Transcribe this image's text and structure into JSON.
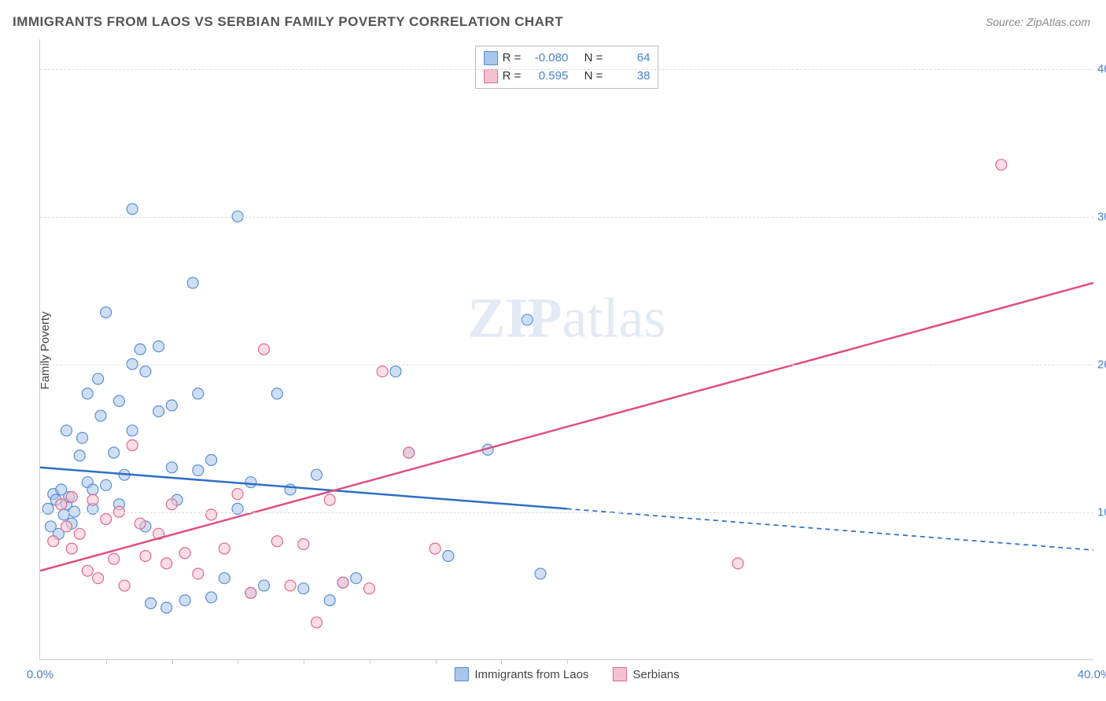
{
  "title": "IMMIGRANTS FROM LAOS VS SERBIAN FAMILY POVERTY CORRELATION CHART",
  "source_prefix": "Source: ",
  "source_name": "ZipAtlas.com",
  "ylabel": "Family Poverty",
  "watermark": {
    "zip": "ZIP",
    "atlas": "atlas"
  },
  "chart": {
    "type": "scatter",
    "xlim": [
      0,
      40
    ],
    "ylim": [
      0,
      42
    ],
    "yticks": [
      {
        "v": 10,
        "label": "10.0%"
      },
      {
        "v": 20,
        "label": "20.0%"
      },
      {
        "v": 30,
        "label": "30.0%"
      },
      {
        "v": 40,
        "label": "40.0%"
      }
    ],
    "xticks_minor": [
      2.5,
      5,
      7.5,
      10,
      12.5,
      15,
      17.5,
      20
    ],
    "xticks_labeled": [
      {
        "v": 0,
        "label": "0.0%"
      },
      {
        "v": 40,
        "label": "40.0%"
      }
    ],
    "background_color": "#ffffff",
    "grid_color": "#dddddd",
    "marker_radius": 7,
    "marker_opacity": 0.55,
    "line_width": 2.5,
    "series": [
      {
        "key": "laos",
        "label": "Immigrants from Laos",
        "color_fill": "#a8c5ea",
        "color_stroke": "#5b8fd6",
        "line_color": "#2f6fc5",
        "R": "-0.080",
        "N": "64",
        "trend": {
          "x1": 0,
          "y1": 13.0,
          "x2_solid": 20,
          "y2_solid": 10.2,
          "x2_dash": 40,
          "y2_dash": 7.4
        },
        "points": [
          [
            0.3,
            10.2
          ],
          [
            0.4,
            9.0
          ],
          [
            0.5,
            11.2
          ],
          [
            0.6,
            10.8
          ],
          [
            0.7,
            8.5
          ],
          [
            0.8,
            11.5
          ],
          [
            0.9,
            9.8
          ],
          [
            1.0,
            10.5
          ],
          [
            1.0,
            15.5
          ],
          [
            1.1,
            11.0
          ],
          [
            1.2,
            9.2
          ],
          [
            1.3,
            10.0
          ],
          [
            1.5,
            13.8
          ],
          [
            1.6,
            15.0
          ],
          [
            1.8,
            12.0
          ],
          [
            1.8,
            18.0
          ],
          [
            2.0,
            11.5
          ],
          [
            2.0,
            10.2
          ],
          [
            2.2,
            19.0
          ],
          [
            2.3,
            16.5
          ],
          [
            2.5,
            23.5
          ],
          [
            2.5,
            11.8
          ],
          [
            2.8,
            14.0
          ],
          [
            3.0,
            10.5
          ],
          [
            3.0,
            17.5
          ],
          [
            3.2,
            12.5
          ],
          [
            3.5,
            30.5
          ],
          [
            3.5,
            20.0
          ],
          [
            3.5,
            15.5
          ],
          [
            3.8,
            21.0
          ],
          [
            4.0,
            19.5
          ],
          [
            4.0,
            9.0
          ],
          [
            4.2,
            3.8
          ],
          [
            4.5,
            21.2
          ],
          [
            4.5,
            16.8
          ],
          [
            4.8,
            3.5
          ],
          [
            5.0,
            13.0
          ],
          [
            5.0,
            17.2
          ],
          [
            5.2,
            10.8
          ],
          [
            5.5,
            4.0
          ],
          [
            5.8,
            25.5
          ],
          [
            6.0,
            12.8
          ],
          [
            6.0,
            18.0
          ],
          [
            6.5,
            13.5
          ],
          [
            6.5,
            4.2
          ],
          [
            7.0,
            5.5
          ],
          [
            7.5,
            30.0
          ],
          [
            7.5,
            10.2
          ],
          [
            8.0,
            4.5
          ],
          [
            8.0,
            12.0
          ],
          [
            8.5,
            5.0
          ],
          [
            9.0,
            18.0
          ],
          [
            9.5,
            11.5
          ],
          [
            10.0,
            4.8
          ],
          [
            10.5,
            12.5
          ],
          [
            11.0,
            4.0
          ],
          [
            11.5,
            5.2
          ],
          [
            12.0,
            5.5
          ],
          [
            13.5,
            19.5
          ],
          [
            14.0,
            14.0
          ],
          [
            15.5,
            7.0
          ],
          [
            17.0,
            14.2
          ],
          [
            18.5,
            23.0
          ],
          [
            19.0,
            5.8
          ]
        ]
      },
      {
        "key": "serbians",
        "label": "Serbians",
        "color_fill": "#f5c1d0",
        "color_stroke": "#e06a8f",
        "line_color": "#e04d7e",
        "R": "0.595",
        "N": "38",
        "trend": {
          "x1": 0,
          "y1": 6.0,
          "x2_solid": 40,
          "y2_solid": 25.5,
          "x2_dash": 40,
          "y2_dash": 25.5
        },
        "points": [
          [
            0.5,
            8.0
          ],
          [
            0.8,
            10.5
          ],
          [
            1.0,
            9.0
          ],
          [
            1.2,
            7.5
          ],
          [
            1.2,
            11.0
          ],
          [
            1.5,
            8.5
          ],
          [
            1.8,
            6.0
          ],
          [
            2.0,
            10.8
          ],
          [
            2.2,
            5.5
          ],
          [
            2.5,
            9.5
          ],
          [
            2.8,
            6.8
          ],
          [
            3.0,
            10.0
          ],
          [
            3.2,
            5.0
          ],
          [
            3.5,
            14.5
          ],
          [
            3.8,
            9.2
          ],
          [
            4.0,
            7.0
          ],
          [
            4.5,
            8.5
          ],
          [
            4.8,
            6.5
          ],
          [
            5.0,
            10.5
          ],
          [
            5.5,
            7.2
          ],
          [
            6.0,
            5.8
          ],
          [
            6.5,
            9.8
          ],
          [
            7.0,
            7.5
          ],
          [
            7.5,
            11.2
          ],
          [
            8.0,
            4.5
          ],
          [
            8.5,
            21.0
          ],
          [
            9.0,
            8.0
          ],
          [
            9.5,
            5.0
          ],
          [
            10.0,
            7.8
          ],
          [
            10.5,
            2.5
          ],
          [
            11.0,
            10.8
          ],
          [
            11.5,
            5.2
          ],
          [
            12.5,
            4.8
          ],
          [
            13.0,
            19.5
          ],
          [
            14.0,
            14.0
          ],
          [
            15.0,
            7.5
          ],
          [
            26.5,
            6.5
          ],
          [
            36.5,
            33.5
          ]
        ]
      }
    ]
  },
  "legend_top_labels": {
    "R": "R =",
    "N": "N ="
  }
}
